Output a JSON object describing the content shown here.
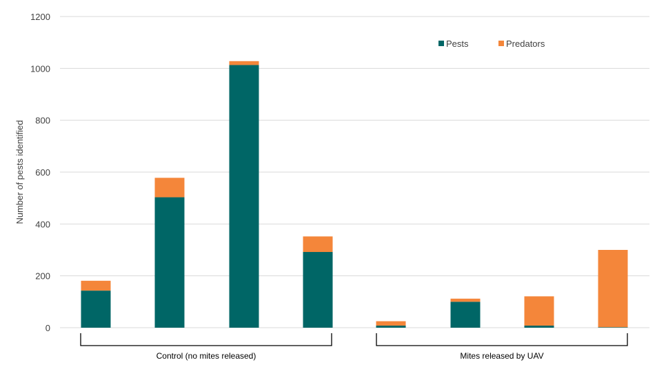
{
  "chart_data": {
    "type": "bar",
    "stacked": true,
    "title": "",
    "xlabel": "",
    "ylabel": "Number of pests identified",
    "ylim": [
      0,
      1200
    ],
    "yticks": [
      "0",
      "200",
      "400",
      "600",
      "800",
      "1000",
      "1200"
    ],
    "grid": true,
    "legend_position": "top-right",
    "groups": [
      {
        "label": "Control (no mites released)",
        "bars": 4
      },
      {
        "label": "Mites released by UAV",
        "bars": 4
      }
    ],
    "series": [
      {
        "name": "Pests",
        "color": "#006666",
        "values": [
          143,
          503,
          1013,
          292,
          8,
          100,
          8,
          2
        ]
      },
      {
        "name": "Predators",
        "color": "#F4863A",
        "values": [
          38,
          75,
          15,
          60,
          17,
          12,
          113,
          298
        ]
      }
    ]
  }
}
